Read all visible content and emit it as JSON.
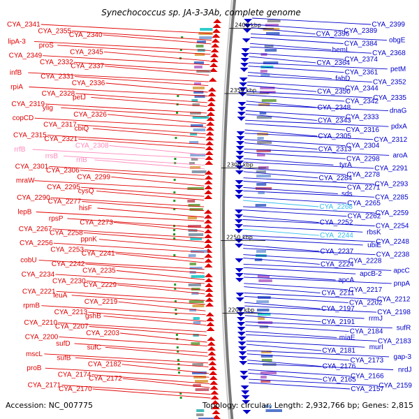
{
  "title": "Synechococcus sp. JA-3-3Ab, complete genome",
  "accession": "Accession: NC_007775",
  "summary": "Topology: circular; Length: 2,932,766 bp; Genes: 2,815",
  "colors": {
    "forward": "#e00000",
    "reverse": "#0000cc",
    "rrna": "#ff88bb",
    "trna": "#33bbee",
    "backbone": "#777777"
  },
  "kbp_marks": [
    {
      "label": "2400 kbp",
      "pos": 0.02
    },
    {
      "label": "2350 kbp",
      "pos": 0.2
    },
    {
      "label": "2300 kbp",
      "pos": 0.405
    },
    {
      "label": "2250 kbp",
      "pos": 0.605
    },
    {
      "label": "2200 kbp",
      "pos": 0.805
    }
  ],
  "left_genes": [
    "CYA_2341",
    "CYA_2355",
    "CYA_2340",
    "lipA-3",
    "proS",
    "CYA_2345",
    "CYA_2349",
    "CYA_2332",
    "CYA_2337",
    "infB",
    "CYA_2331",
    "CYA_2336",
    "rpiA",
    "CYA_2328",
    "petJ",
    "CYA_2319",
    "ylig",
    "CYA_2326",
    "copCD",
    "CYA_2317",
    "cbiQ",
    "CYA_2315",
    "CYA_2321",
    "CYA_2308",
    "rrfB",
    "rrsB",
    "rrlB",
    "CYA_2301",
    "CYA_2306",
    "CYA_2299",
    "mraW",
    "CYA_2295",
    "cysQ",
    "CYA_2290",
    "CYA_2277",
    "hisF",
    "lepB",
    "rpsP",
    "CYA_2273",
    "CYA_2267",
    "CYA_2258",
    "ppnK",
    "CYA_2256",
    "CYA_2253",
    "CYA_2241",
    "cobU",
    "CYA_2242",
    "CYA_2235",
    "CYA_2234",
    "CYA_2230",
    "CYA_2229",
    "CYA_2221",
    "leuA",
    "CYA_2219",
    "rpmB",
    "CYA_2213",
    "gshB",
    "CYA_2210",
    "CYA_2207",
    "CYA_2203",
    "CYA_2200",
    "sufD",
    "sufC",
    "mscL",
    "sufB",
    "CYA_2182",
    "proB",
    "CYA_2174",
    "CYA_2172",
    "CYA_2171",
    "CYA_2170"
  ],
  "right_genes": [
    "CYA_2399",
    "CYA_2389",
    "CYA_2396",
    "obgE",
    "CYA_2384",
    "hemL",
    "CYA_2368",
    "CYA_2374",
    "CYA_2364",
    "petM",
    "CYA_2361",
    "fabD",
    "CYA_2352",
    "CYA_2344",
    "CYA_2350",
    "CYA_2335",
    "CYA_2342",
    "CYA_2348",
    "dnaG",
    "CYA_2333",
    "CYA_2343",
    "pdxA",
    "CYA_2316",
    "CYA_2305",
    "CYA_2312",
    "CYA_2304",
    "CYA_2313",
    "aroA",
    "CYA_2298",
    "tyrA",
    "CYA_2291",
    "CYA_2278",
    "CYA_2284",
    "CYA_2293",
    "CYA_2271",
    "sds",
    "CYA_2285",
    "CYA_2265",
    "CYA_2268",
    "CYA_2259",
    "CYA_2262",
    "CYA_2252",
    "CYA_2254",
    "rbsK",
    "CYA_2244",
    "CYA_2248",
    "ubiE",
    "CYA_2237",
    "CYA_2238",
    "CYA_2228",
    "CYA_2224",
    "apcC",
    "apcB-2",
    "apcA",
    "pnpA",
    "CYA_2217",
    "CYA_2211",
    "CYA_2212",
    "CYA_2202",
    "CYA_2197",
    "CYA_2198",
    "rrmJ",
    "CYA_2191",
    "sufR",
    "CYA_2184",
    "miaE",
    "CYA_2183",
    "murI",
    "CYA_2181",
    "gap-3",
    "CYA_2173",
    "CYA_2176",
    "nrdJ",
    "CYA_2166",
    "CYA_2165",
    "CYA_2159",
    "CYA_2157"
  ]
}
